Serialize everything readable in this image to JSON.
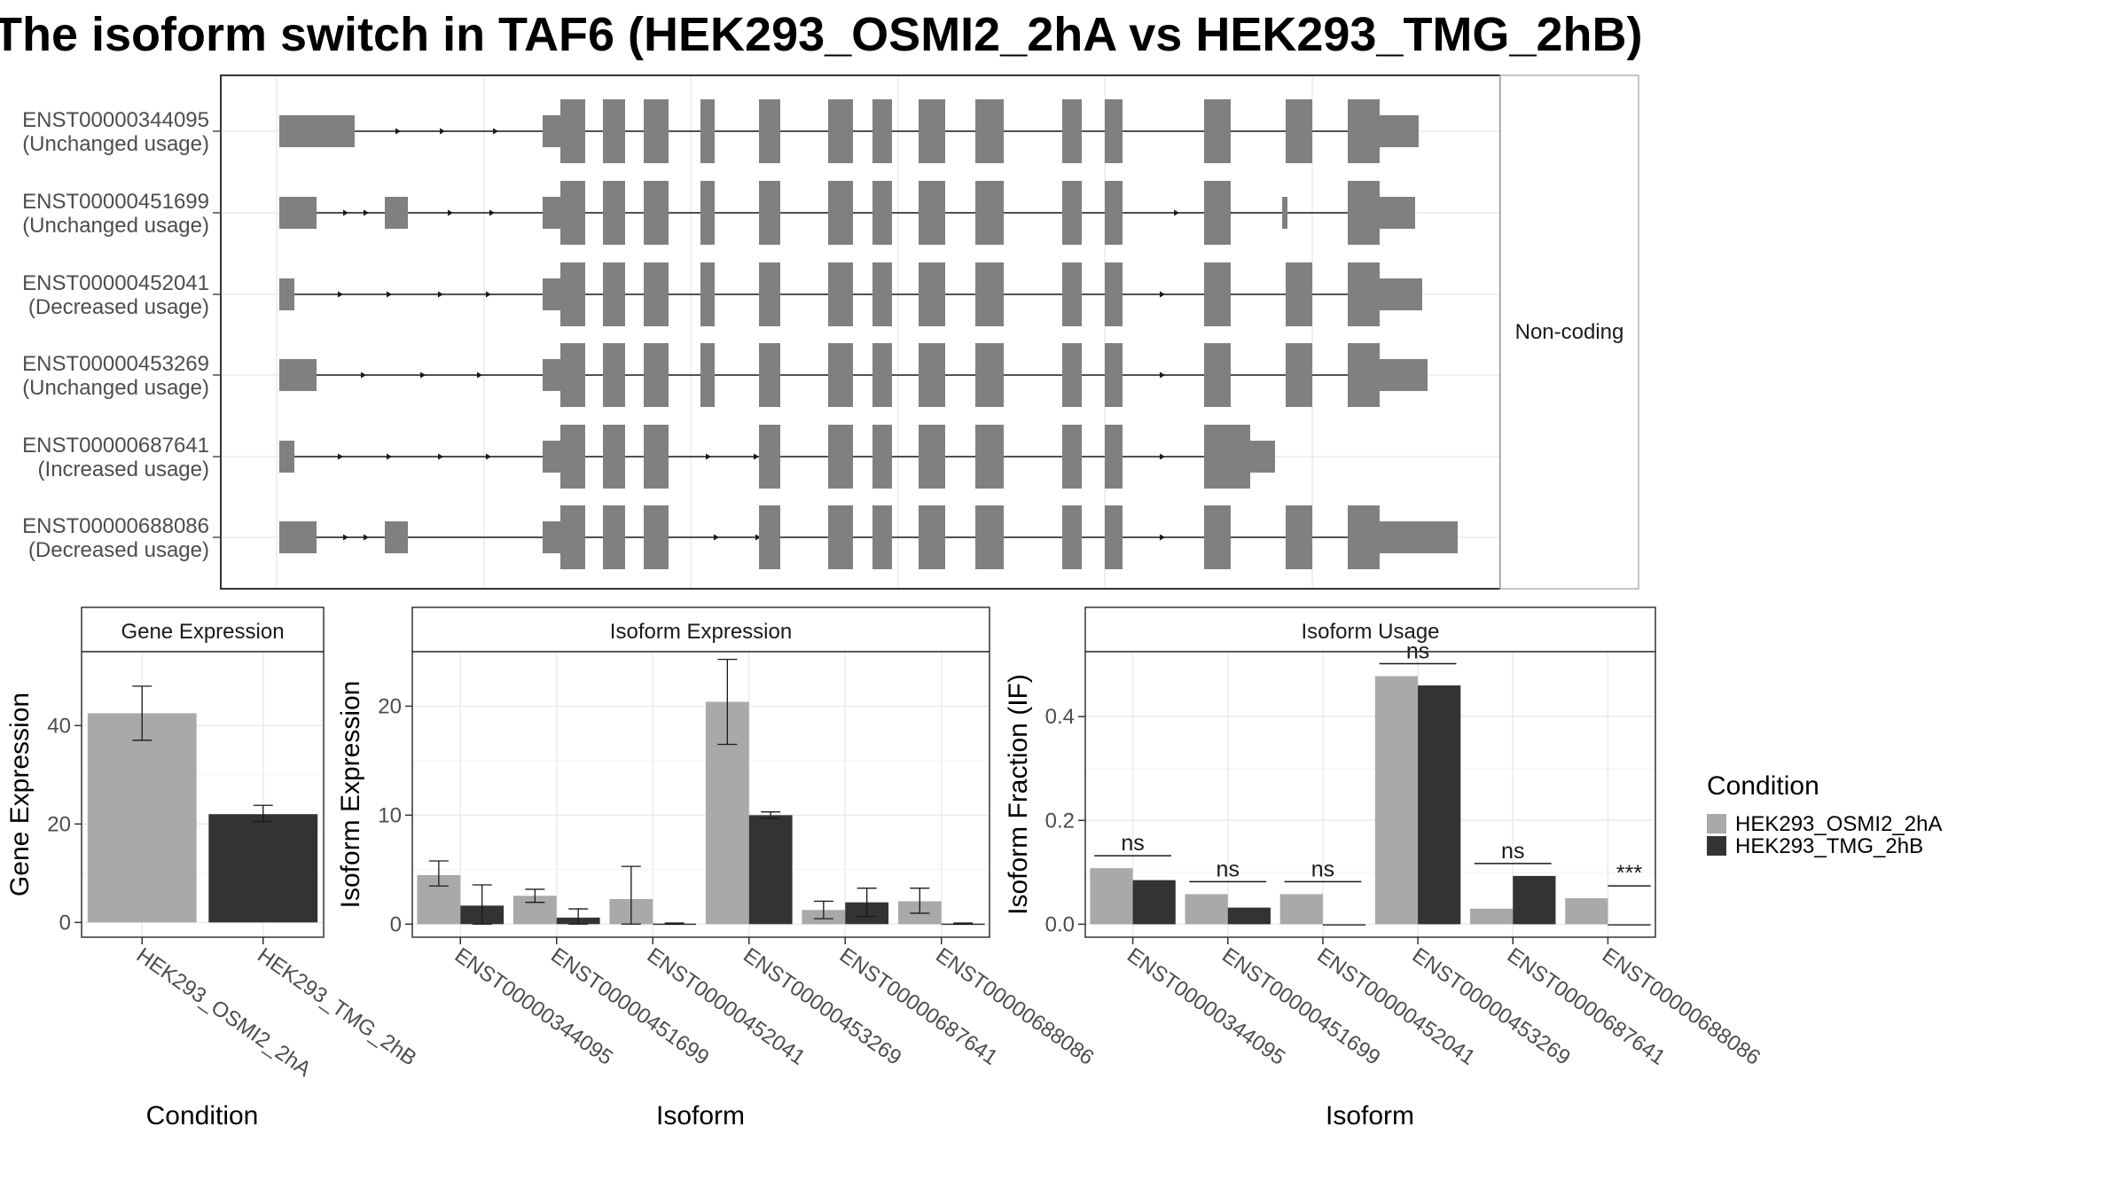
{
  "title": "The isoform switch in TAF6 (HEK293_OSMI2_2hA vs HEK293_TMG_2hB)",
  "colors": {
    "cond_a": "#A9A9A9",
    "cond_b": "#333333",
    "exon": "#808080",
    "panel_border": "#333333",
    "strip_fill": "#FFFFFF",
    "grid": "#EBEBEB",
    "text": "#333333",
    "axis_text": "#4D4D4D"
  },
  "structure": {
    "facet_label": "Non-coding",
    "isoforms": [
      {
        "id": "ENST00000344095",
        "usage": "(Unchanged usage)"
      },
      {
        "id": "ENST00000451699",
        "usage": "(Unchanged usage)"
      },
      {
        "id": "ENST00000452041",
        "usage": "(Decreased usage)"
      },
      {
        "id": "ENST00000453269",
        "usage": "(Unchanged usage)"
      },
      {
        "id": "ENST00000687641",
        "usage": "(Increased usage)"
      },
      {
        "id": "ENST00000688086",
        "usage": "(Decreased usage)"
      }
    ]
  },
  "legend": {
    "title": "Condition",
    "items": [
      "HEK293_OSMI2_2hA",
      "HEK293_TMG_2hB"
    ]
  },
  "chart_data": [
    {
      "type": "bar",
      "panel": "Gene Expression",
      "xlabel": "Condition",
      "ylabel": "Gene Expression",
      "ylim": [
        -3,
        55
      ],
      "yticks": [
        0,
        20,
        40
      ],
      "grid": true,
      "categories": [
        "HEK293_OSMI2_2hA",
        "HEK293_TMG_2hB"
      ],
      "values": [
        42.5,
        22
      ],
      "errors": [
        [
          37,
          48
        ],
        [
          20.5,
          23.8
        ]
      ]
    },
    {
      "type": "bar",
      "panel": "Isoform Expression",
      "xlabel": "Isoform",
      "ylabel": "Isoform Expression",
      "ylim": [
        -1.2,
        25
      ],
      "yticks": [
        0,
        10,
        20
      ],
      "grid": true,
      "categories": [
        "ENST00000344095",
        "ENST00000451699",
        "ENST00000452041",
        "ENST00000453269",
        "ENST00000687641",
        "ENST00000688086"
      ],
      "series": [
        {
          "name": "HEK293_OSMI2_2hA",
          "values": [
            4.5,
            2.6,
            2.3,
            20.4,
            1.3,
            2.1
          ],
          "errors": [
            [
              3.5,
              5.8
            ],
            [
              2.0,
              3.2
            ],
            [
              0.0,
              5.3
            ],
            [
              16.5,
              24.3
            ],
            [
              0.5,
              2.1
            ],
            [
              1.0,
              3.3
            ]
          ]
        },
        {
          "name": "HEK293_TMG_2hB",
          "values": [
            1.7,
            0.6,
            0.05,
            10.0,
            2.0,
            0.05
          ],
          "errors": [
            [
              0.0,
              3.6
            ],
            [
              0.0,
              1.4
            ],
            [
              0.0,
              0.1
            ],
            [
              9.7,
              10.3
            ],
            [
              0.7,
              3.3
            ],
            [
              0.0,
              0.1
            ]
          ]
        }
      ]
    },
    {
      "type": "bar",
      "panel": "Isoform Usage",
      "xlabel": "Isoform",
      "ylabel": "Isoform Fraction (IF)",
      "ylim": [
        -0.025,
        0.525
      ],
      "yticks": [
        "0.0",
        "0.2",
        "0.4"
      ],
      "grid": true,
      "categories": [
        "ENST00000344095",
        "ENST00000451699",
        "ENST00000452041",
        "ENST00000453269",
        "ENST00000687641",
        "ENST00000688086"
      ],
      "series": [
        {
          "name": "HEK293_OSMI2_2hA",
          "values": [
            0.108,
            0.058,
            0.058,
            0.478,
            0.03,
            0.05
          ]
        },
        {
          "name": "HEK293_TMG_2hB",
          "values": [
            0.085,
            0.032,
            0.0,
            0.46,
            0.093,
            0.0
          ]
        }
      ],
      "significance": [
        "ns",
        "ns",
        "ns",
        "ns",
        "ns",
        "***"
      ]
    }
  ]
}
